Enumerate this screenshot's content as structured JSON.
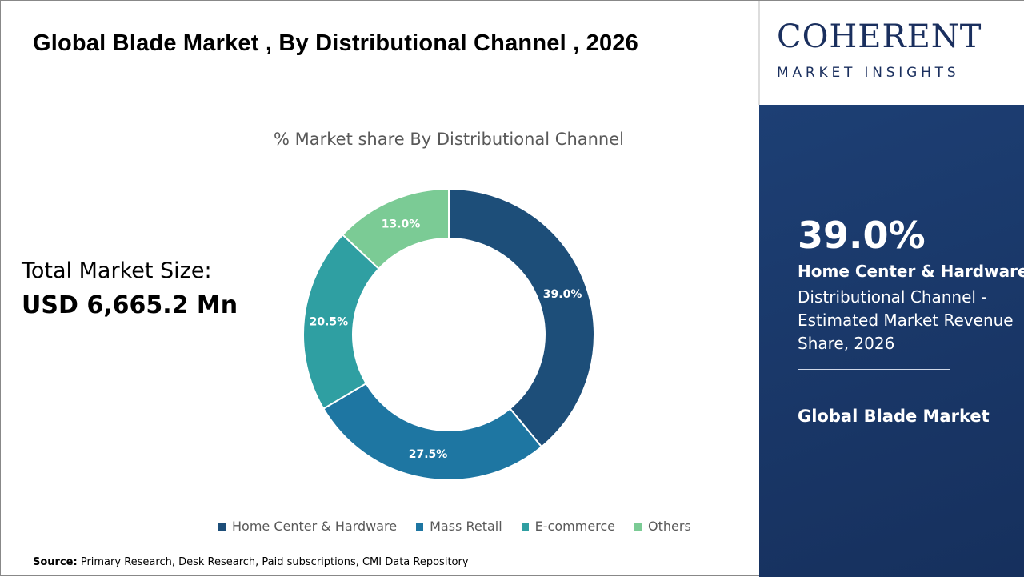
{
  "header": {
    "title": "Global Blade Market , By Distributional Channel , 2026"
  },
  "total": {
    "label": "Total Market Size:",
    "value": "USD 6,665.2 Mn"
  },
  "chart_data": {
    "type": "pie",
    "donut": true,
    "title": "% Market share By Distributional Channel",
    "categories": [
      "Home Center & Hardware",
      "Mass Retail",
      "E-commerce",
      "Others"
    ],
    "values": [
      39.0,
      27.5,
      20.5,
      13.0
    ],
    "labels": [
      "39.0%",
      "27.5%",
      "20.5%",
      "13.0%"
    ],
    "colors": [
      "#1d4e79",
      "#1e76a2",
      "#2f9fa2",
      "#7bcb95"
    ],
    "legend": "bottom"
  },
  "source": {
    "label": "Source:",
    "text": "Primary Research, Desk Research, Paid subscriptions, CMI Data Repository"
  },
  "logo": {
    "main": "COHERENT",
    "sub": "MARKET INSIGHTS"
  },
  "panel": {
    "percent": "39.0%",
    "segment": "Home Center & Hardware",
    "description": "Distributional Channel - Estimated Market Revenue Share, 2026",
    "market": "Global Blade Market"
  }
}
